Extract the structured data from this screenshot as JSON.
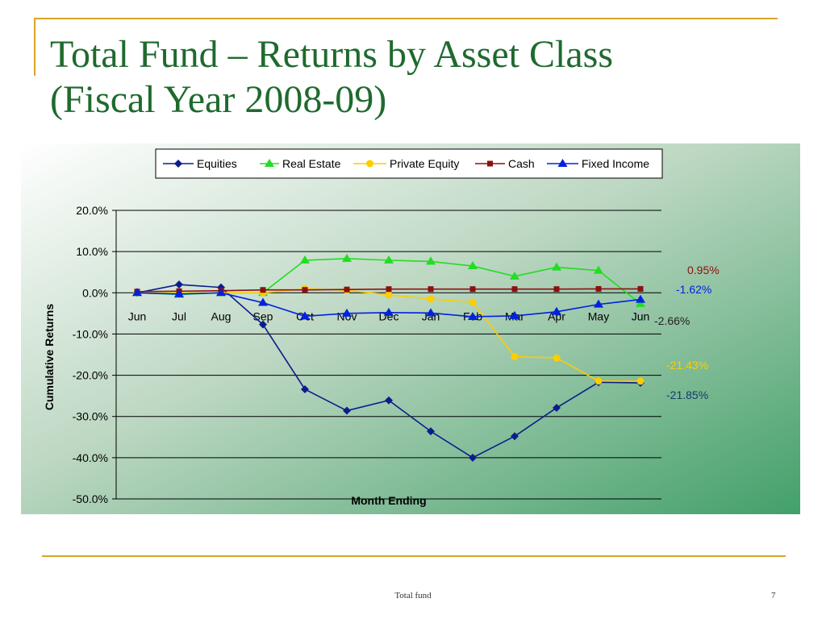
{
  "slide": {
    "title_line1": "Total Fund – Returns by Asset Class",
    "title_line2": "(Fiscal Year 2008-09)",
    "footer": "Total fund",
    "page_number": "7"
  },
  "chart_data": {
    "type": "line",
    "categories": [
      "Jun",
      "Jul",
      "Aug",
      "Sep",
      "Oct",
      "Nov",
      "Dec",
      "Jan",
      "Feb",
      "Mar",
      "Apr",
      "May",
      "Jun"
    ],
    "ylabel": "Cumulative Returns",
    "xlabel": "Month Ending",
    "ylim": [
      -50,
      20
    ],
    "yticks": [
      20,
      10,
      0,
      -10,
      -20,
      -30,
      -40,
      -50
    ],
    "ytick_labels": [
      "20.0%",
      "10.0%",
      "0.0%",
      "-10.0%",
      "-20.0%",
      "-30.0%",
      "-40.0%",
      "-50.0%"
    ],
    "grid": true,
    "legend_position": "top",
    "series": [
      {
        "name": "Equities",
        "color": "#0b1d8c",
        "marker": "diamond",
        "values": [
          0,
          2.0,
          1.3,
          -7.7,
          -23.4,
          -28.6,
          -26.1,
          -33.6,
          -40.0,
          -34.8,
          -27.9,
          -21.7,
          -21.85
        ],
        "end_label": "-21.85%",
        "end_label_color": "#173a6e"
      },
      {
        "name": "Real Estate",
        "color": "#22dd22",
        "marker": "triangle",
        "values": [
          0,
          -0.4,
          0,
          0,
          7.9,
          8.3,
          7.9,
          7.6,
          6.5,
          4.0,
          6.2,
          5.4,
          -2.66
        ],
        "end_label": "-2.66%",
        "end_label_color": "#222222"
      },
      {
        "name": "Private Equity",
        "color": "#ffcc00",
        "marker": "circle",
        "values": [
          0,
          0,
          0,
          0,
          1.0,
          0.6,
          -0.5,
          -1.5,
          -2.3,
          -15.5,
          -15.8,
          -21.4,
          -21.43
        ],
        "end_label": "-21.43%",
        "end_label_color": "#ffcc00"
      },
      {
        "name": "Cash",
        "color": "#8b1010",
        "marker": "square",
        "values": [
          0.3,
          0.4,
          0.5,
          0.7,
          0.7,
          0.8,
          0.9,
          0.9,
          0.9,
          0.9,
          0.9,
          0.95,
          0.95
        ],
        "end_label": "0.95%",
        "end_label_color": "#8b1010"
      },
      {
        "name": "Fixed Income",
        "color": "#0022dd",
        "marker": "triangle",
        "values": [
          0,
          -0.3,
          0,
          -2.4,
          -5.7,
          -5.0,
          -4.8,
          -4.9,
          -5.8,
          -5.6,
          -4.6,
          -2.8,
          -1.62
        ],
        "end_label": "-1.62%",
        "end_label_color": "#0022dd"
      }
    ]
  }
}
